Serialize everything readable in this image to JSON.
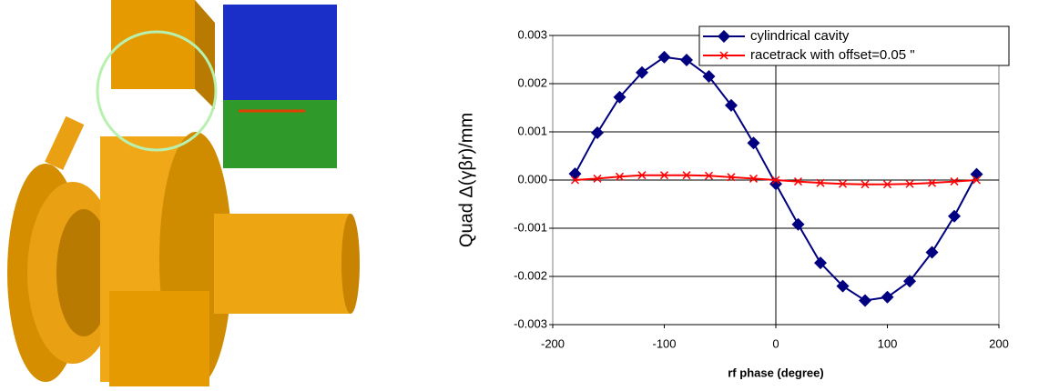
{
  "chart_data": {
    "type": "line",
    "x_label": "rf phase (degree)",
    "y_label": "Quad Δ(γβr)/mm",
    "x": [
      -180,
      -160,
      -140,
      -120,
      -100,
      -80,
      -60,
      -40,
      -20,
      0,
      20,
      40,
      60,
      80,
      100,
      120,
      140,
      160,
      180
    ],
    "series": [
      {
        "name": "cylindrical cavity",
        "color": "#000080",
        "marker": "diamond",
        "values": [
          0.00013,
          0.00098,
          0.00172,
          0.00223,
          0.00255,
          0.00249,
          0.00215,
          0.00155,
          0.00077,
          -8e-05,
          -0.00092,
          -0.00172,
          -0.0022,
          -0.0025,
          -0.00243,
          -0.0021,
          -0.0015,
          -0.00075,
          0.00012
        ]
      },
      {
        "name": "racetrack with offset=0.05 \"",
        "color": "#ff0000",
        "marker": "x",
        "values": [
          0,
          3e-05,
          7e-05,
          0.0001,
          0.0001,
          0.0001,
          9e-05,
          6e-05,
          3e-05,
          0,
          -3e-05,
          -6e-05,
          -8e-05,
          -9e-05,
          -9e-05,
          -8e-05,
          -6e-05,
          -3e-05,
          0
        ]
      }
    ],
    "xlim": [
      -200,
      200
    ],
    "xticks": [
      -200,
      -100,
      0,
      100,
      200
    ],
    "ylim": [
      -0.003,
      0.003
    ],
    "yticks": [
      -0.003,
      -0.002,
      -0.001,
      {
        "value": 0,
        "label": "0.000"
      },
      0.001,
      0.002,
      0.003
    ],
    "grid": true,
    "legend": "top-right"
  }
}
